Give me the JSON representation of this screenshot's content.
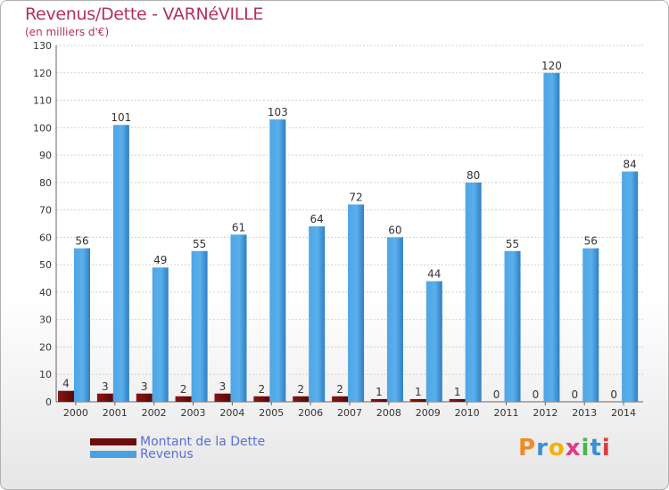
{
  "chart_data": {
    "type": "bar",
    "title": "Revenus/Dette - VARNéVILLE",
    "subtitle": "(en milliers d'€)",
    "categories": [
      "2000",
      "2001",
      "2002",
      "2003",
      "2004",
      "2005",
      "2006",
      "2007",
      "2008",
      "2009",
      "2010",
      "2011",
      "2012",
      "2013",
      "2014"
    ],
    "series": [
      {
        "name": "Montant de la Dette",
        "color": "#7a1010",
        "values": [
          4,
          3,
          3,
          2,
          3,
          2,
          2,
          2,
          1,
          1,
          1,
          0,
          0,
          0,
          0
        ]
      },
      {
        "name": "Revenus",
        "color": "#4aa0e0",
        "values": [
          56,
          101,
          49,
          55,
          61,
          103,
          64,
          72,
          60,
          44,
          80,
          55,
          120,
          56,
          84
        ]
      }
    ],
    "ylim": [
      0,
      130
    ],
    "yticks": [
      0,
      10,
      20,
      30,
      40,
      50,
      60,
      70,
      80,
      90,
      100,
      110,
      120,
      130
    ],
    "grid": true,
    "legend_position": "bottom-left"
  },
  "logo": {
    "text": "Proxiti",
    "colors": [
      "#f08a24",
      "#3a8fd6",
      "#f0b400",
      "#e03a8a",
      "#4bb54a",
      "#3a8fd6",
      "#e03a3a"
    ]
  }
}
